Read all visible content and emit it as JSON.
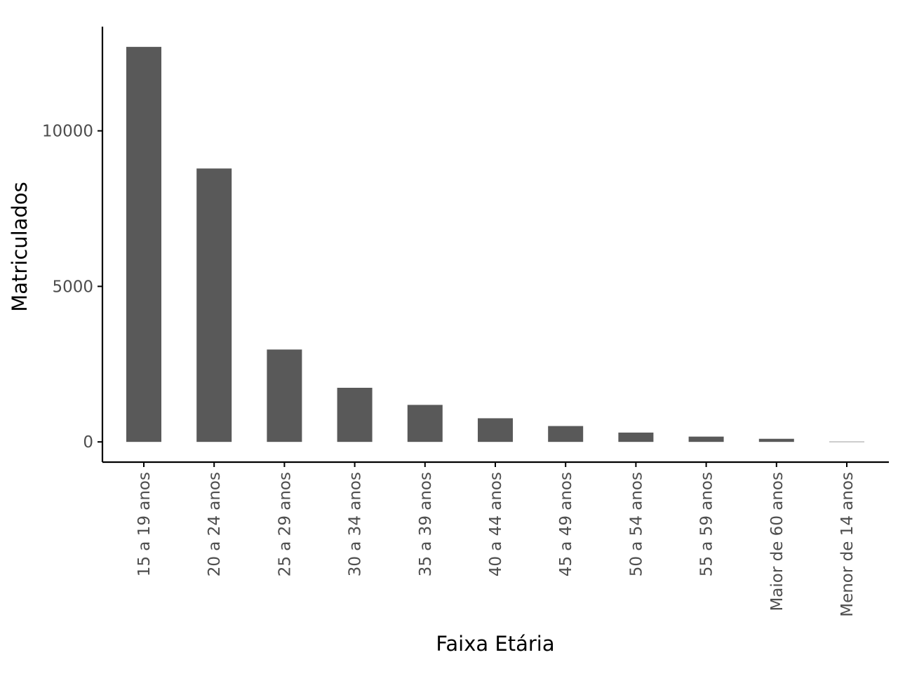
{
  "chart_data": {
    "type": "bar",
    "title": "",
    "xlabel": "Faixa Etária",
    "ylabel": "Matriculados",
    "categories": [
      "15 a 19 anos",
      "20 a 24 anos",
      "25 a 29 anos",
      "30 a 34 anos",
      "35 a 39 anos",
      "40 a 44 anos",
      "45 a 49 anos",
      "50 a 54 anos",
      "55 a 59 anos",
      "Maior de 60 anos",
      "Menor de 14 anos"
    ],
    "values": [
      12700,
      8790,
      2970,
      1740,
      1190,
      760,
      510,
      300,
      170,
      100,
      10
    ],
    "yticks": [
      0,
      5000,
      10000
    ],
    "ylim": [
      -650,
      13350
    ],
    "grid": false,
    "legend": "none",
    "bar_color": "#595959",
    "axis_color": "#000000",
    "tick_label_color": "#4d4d4d"
  }
}
